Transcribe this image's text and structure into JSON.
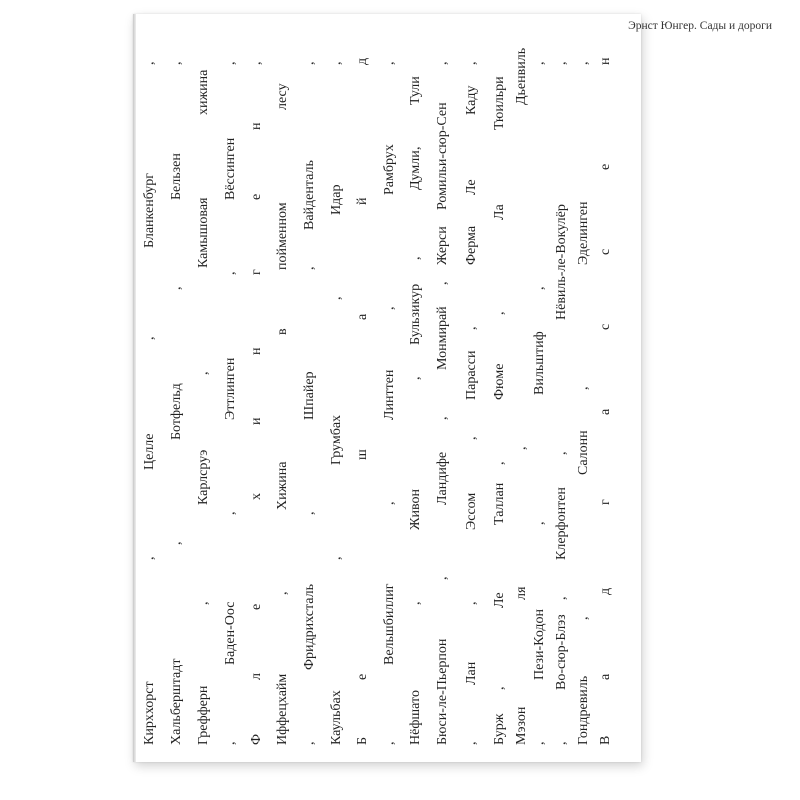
{
  "header": {
    "running_title": "Эрнст Юнгер. Сады и дороги"
  },
  "lines": [
    [
      "Кирххорст",
      ",",
      "Целле",
      ",",
      "Бланкенбург",
      ","
    ],
    [
      "Хальберштадт",
      ",",
      "Ботфельд",
      ",",
      "Бельзен",
      ","
    ],
    [
      "Грефферн",
      ",",
      "Карлсруэ",
      ",",
      "Камышовая",
      "хижина"
    ],
    [
      ",",
      "Баден-Оос",
      ",",
      "Эттлинген",
      ",",
      "Вёссинген",
      ","
    ],
    [
      "Ф",
      "л",
      "е",
      "х",
      "и",
      "н",
      "г",
      "е",
      "н",
      ","
    ],
    [
      "Иффецхайм",
      ",",
      "Хижина",
      "в",
      "пойменном",
      "лесу"
    ],
    [
      ",",
      "Фридрихсталь",
      ",",
      "Шпайер",
      ",",
      "Вайденталь",
      ","
    ],
    [
      "Каульбах",
      ",",
      "Грумбах",
      ",",
      "Идар",
      ","
    ],
    [
      "Б",
      "е",
      "ш",
      "а",
      "й",
      "д"
    ],
    [
      ",",
      "Вельшбиллиг",
      ",",
      "Линттен",
      ",",
      "Рамбрух",
      ","
    ],
    [
      "Нёфшато",
      ",",
      "Живон",
      ",",
      "Бульзикур",
      ",",
      "Думли",
      ",",
      "Тули"
    ],
    [
      "Бюси-ле-Пьерпон",
      ",",
      "Ландифе",
      ",",
      "Монмирай",
      ",",
      "Жерси",
      "Ромильи-сюр-Сен",
      ","
    ],
    [
      ",",
      "Лан",
      ",",
      "Эссом",
      ",",
      "Парасси",
      ",",
      "Ферма",
      "Ле",
      "Каду",
      ","
    ],
    [
      "Бурж",
      ",",
      "Ле",
      "Таллан",
      ",",
      "Фюме",
      ",",
      "Ла",
      "Тюильри"
    ],
    [
      "Мэзон",
      "ля",
      ",",
      "Дьенвиль"
    ],
    [
      ",",
      "Пези-Кодон",
      ",",
      "Вильштиф",
      ",",
      ","
    ],
    [
      ",",
      "Во-сюр-Блэз",
      ",",
      "Клерфонтен",
      ",",
      "Нёвиль-ле-Вокулёр",
      ","
    ],
    [
      "Гондревиль",
      ",",
      "Салонн",
      ",",
      "Эделинген",
      ","
    ],
    [
      "В",
      "а",
      "д",
      "г",
      "а",
      "с",
      "с",
      "е",
      "н"
    ]
  ]
}
